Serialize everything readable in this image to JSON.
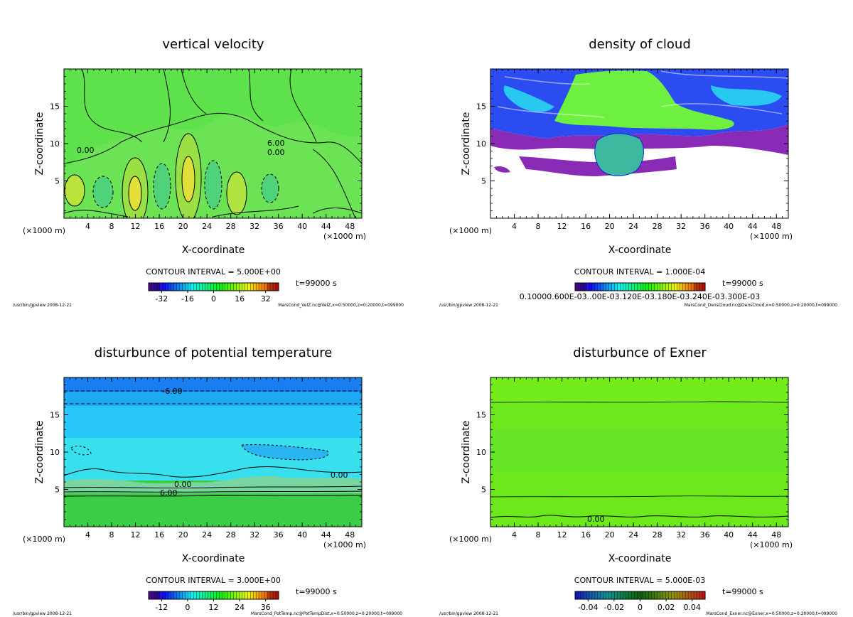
{
  "colors": {
    "velocity_field": "#5ee24c",
    "cloud_fill": "#6ef040",
    "cloud_blue": "#2a4cf0",
    "cloud_purple": "#8a2bb8",
    "theta_top": "#1b7ef0",
    "theta_mid": "#28d0f8",
    "theta_low": "#3ccc46",
    "exner_field": "#6ce81c"
  },
  "chart_data": [
    {
      "type": "heatmap",
      "title": "vertical velocity",
      "xlabel": "X-coordinate",
      "ylabel": "Z-coordinate",
      "x_unit_label": "(×1000 m)",
      "x_unit_label_right": "(×1000 m)",
      "xlim": [
        0,
        50
      ],
      "ylim": [
        0,
        20
      ],
      "xticks": [
        4,
        8,
        12,
        16,
        20,
        24,
        28,
        32,
        36,
        40,
        44,
        48
      ],
      "yticks": [
        5,
        10,
        15
      ],
      "contour_interval": "CONTOUR INTERVAL = 5.000E+00",
      "time": "t=99000 s",
      "colorbar_ticks": [
        -32,
        -16,
        0,
        16,
        32
      ],
      "colorbar_range": [
        -40,
        40
      ],
      "contour_labels": [
        "0.00",
        "0.00",
        "6.00"
      ],
      "footer_left": "/usr/bin/gpview  2008-12-21",
      "footer_right": "MarsCond_VelZ.nc@VelZ,x=0:50000,z=0:20000,t=099000"
    },
    {
      "type": "heatmap",
      "title": "density of cloud",
      "xlabel": "X-coordinate",
      "ylabel": "Z-coordinate",
      "x_unit_label": "(×1000 m)",
      "x_unit_label_right": "(×1000 m)",
      "xlim": [
        0,
        50
      ],
      "ylim": [
        0,
        20
      ],
      "xticks": [
        4,
        8,
        12,
        16,
        20,
        24,
        28,
        32,
        36,
        40,
        44,
        48
      ],
      "yticks": [
        5,
        10,
        15
      ],
      "contour_interval": "CONTOUR INTERVAL = 1.000E-04",
      "time": "t=99000 s",
      "colorbar_ticks_text": "0.10000.600E-03..00E-03.120E-03.180E-03.240E-03.300E-03",
      "footer_left": "/usr/bin/gpview  2008-12-21",
      "footer_right": "MarsCond_DensCloud.nc@DensCloud,x=0:50000,z=0:20000,t=099000"
    },
    {
      "type": "heatmap",
      "title": "disturbunce of potential temperature",
      "xlabel": "X-coordinate",
      "ylabel": "Z-coordinate",
      "x_unit_label": "(×1000 m)",
      "x_unit_label_right": "(×1000 m)",
      "xlim": [
        0,
        50
      ],
      "ylim": [
        0,
        20
      ],
      "xticks": [
        4,
        8,
        12,
        16,
        20,
        24,
        28,
        32,
        36,
        40,
        44,
        48
      ],
      "yticks": [
        5,
        10,
        15
      ],
      "contour_interval": "CONTOUR INTERVAL = 3.000E+00",
      "time": "t=99000 s",
      "colorbar_ticks": [
        -12,
        0,
        12,
        24,
        36
      ],
      "colorbar_range": [
        -18,
        42
      ],
      "contour_labels": [
        "-6.00",
        "0.00",
        "0.00",
        "6.00"
      ],
      "footer_left": "/usr/bin/gpview  2008-12-21",
      "footer_right": "MarsCond_PotTemp.nc@PotTempDist,x=0:50000,z=0:20000,t=099000"
    },
    {
      "type": "heatmap",
      "title": "disturbunce of Exner",
      "xlabel": "X-coordinate",
      "ylabel": "Z-coordinate",
      "x_unit_label": "(×1000 m)",
      "x_unit_label_right": "(×1000 m)",
      "xlim": [
        0,
        50
      ],
      "ylim": [
        0,
        20
      ],
      "xticks": [
        4,
        8,
        12,
        16,
        20,
        24,
        28,
        32,
        36,
        40,
        44,
        48
      ],
      "yticks": [
        5,
        10,
        15
      ],
      "contour_interval": "CONTOUR INTERVAL = 5.000E-03",
      "time": "t=99000 s",
      "colorbar_ticks": [
        -0.04,
        -0.02,
        0,
        0.02,
        0.04
      ],
      "colorbar_labels": [
        "-0.04",
        "-0.02",
        "0",
        "0.02",
        "0.04"
      ],
      "colorbar_range": [
        -0.05,
        0.05
      ],
      "contour_labels": [
        "0.00"
      ],
      "footer_left": "/usr/bin/gpview  2008-12-21",
      "footer_right": "MarsCond_Exner.nc@Exner,x=0:50000,z=0:20000,t=099000"
    }
  ]
}
